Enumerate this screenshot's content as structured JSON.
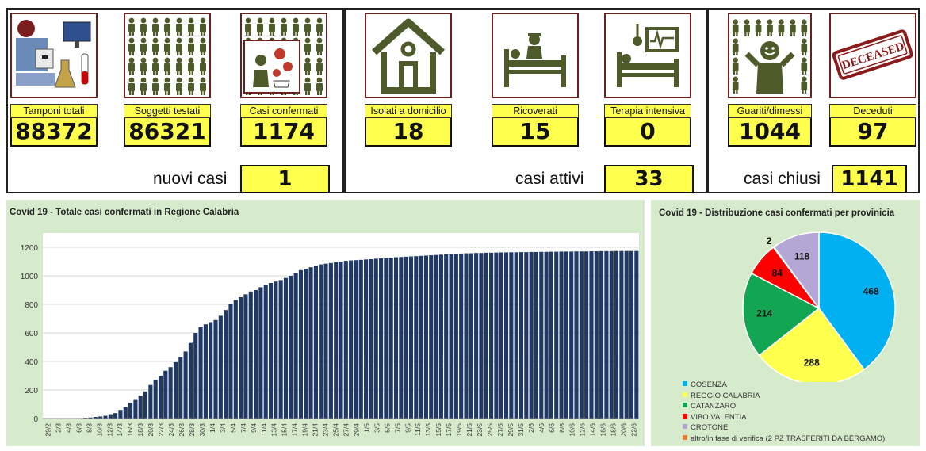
{
  "stats": {
    "tamponi": {
      "label": "Tamponi totali",
      "value": "88372"
    },
    "soggetti": {
      "label": "Soggetti testati",
      "value": "86321"
    },
    "confermati": {
      "label": "Casi confermati",
      "value": "1174"
    },
    "isolati": {
      "label": "Isolati a domicilio",
      "value": "18"
    },
    "ricoverati": {
      "label": "Ricoverati",
      "value": "15"
    },
    "terapia": {
      "label": "Terapia intensiva",
      "value": "0"
    },
    "guariti": {
      "label": "Guariti/dimessi",
      "value": "1044"
    },
    "deceduti": {
      "label": "Deceduti",
      "value": "97"
    }
  },
  "summary": {
    "nuovi_label": "nuovi casi",
    "nuovi_value": "1",
    "attivi_label": "casi attivi",
    "attivi_value": "33",
    "chiusi_label": "casi chiusi",
    "chiusi_value": "1141"
  },
  "deceased_stamp": "DECEASED",
  "colors": {
    "bar": "#1f3864",
    "panel_bg": "#d6ebcc",
    "stat_yellow": "#ffff4d",
    "icon_green": "#4e5a2a"
  },
  "chart_data": [
    {
      "type": "bar",
      "title": "Covid 19 - Totale casi confermati in Regione Calabria",
      "xlabel": "",
      "ylabel": "",
      "ylim": [
        0,
        1300
      ],
      "yticks": [
        0,
        200,
        400,
        600,
        800,
        1000,
        1200
      ],
      "grid": true,
      "x_tick_labels": [
        "29/2",
        "2/3",
        "4/3",
        "6/3",
        "8/3",
        "10/3",
        "12/3",
        "14/3",
        "16/3",
        "18/3",
        "20/3",
        "22/3",
        "24/3",
        "26/3",
        "28/3",
        "30/3",
        "1/4",
        "3/4",
        "5/4",
        "7/4",
        "9/4",
        "11/4",
        "13/4",
        "15/4",
        "17/4",
        "19/4",
        "21/4",
        "23/4",
        "25/4",
        "27/4",
        "29/4",
        "1/5",
        "3/5",
        "5/5",
        "7/5",
        "9/5",
        "11/5",
        "13/5",
        "15/5",
        "17/5",
        "19/5",
        "21/5",
        "23/5",
        "25/5",
        "27/5",
        "29/5",
        "31/5",
        "2/6",
        "4/6",
        "6/6",
        "8/6",
        "10/6",
        "12/6",
        "14/6",
        "16/6",
        "18/6",
        "20/6",
        "22/6"
      ],
      "values": [
        0,
        0,
        1,
        1,
        1,
        1,
        2,
        3,
        5,
        7,
        11,
        14,
        19,
        30,
        38,
        60,
        80,
        110,
        130,
        160,
        190,
        235,
        270,
        300,
        335,
        360,
        395,
        430,
        470,
        530,
        600,
        640,
        660,
        675,
        690,
        720,
        760,
        800,
        830,
        850,
        870,
        890,
        900,
        920,
        935,
        950,
        960,
        970,
        985,
        1000,
        1020,
        1040,
        1050,
        1060,
        1070,
        1080,
        1085,
        1090,
        1095,
        1100,
        1105,
        1108,
        1110,
        1112,
        1115,
        1117,
        1120,
        1122,
        1125,
        1127,
        1130,
        1132,
        1134,
        1136,
        1138,
        1140,
        1142,
        1144,
        1146,
        1148,
        1150,
        1152,
        1154,
        1156,
        1158,
        1158,
        1160,
        1160,
        1162,
        1162,
        1163,
        1164,
        1164,
        1165,
        1165,
        1166,
        1166,
        1167,
        1167,
        1168,
        1168,
        1169,
        1169,
        1170,
        1170,
        1170,
        1171,
        1171,
        1171,
        1172,
        1172,
        1173,
        1173,
        1173,
        1174,
        1174,
        1174,
        1174,
        1174
      ]
    },
    {
      "type": "pie",
      "title": "Covid 19 - Distribuzione casi confermati per provinicia",
      "slices": [
        {
          "label": "COSENZA",
          "value": 468,
          "color": "#00b0f0"
        },
        {
          "label": "REGGIO CALABRIA",
          "value": 288,
          "color": "#ffff4d"
        },
        {
          "label": "CATANZARO",
          "value": 214,
          "color": "#12a652"
        },
        {
          "label": "VIBO VALENTIA",
          "value": 84,
          "color": "#ff0000"
        },
        {
          "label": "CROTONE",
          "value": 118,
          "color": "#b4a7d6"
        },
        {
          "label": "altro/in fase di verifica (2 PZ TRASFERITI DA BERGAMO)",
          "value": 2,
          "color": "#ed7d31"
        }
      ]
    }
  ]
}
